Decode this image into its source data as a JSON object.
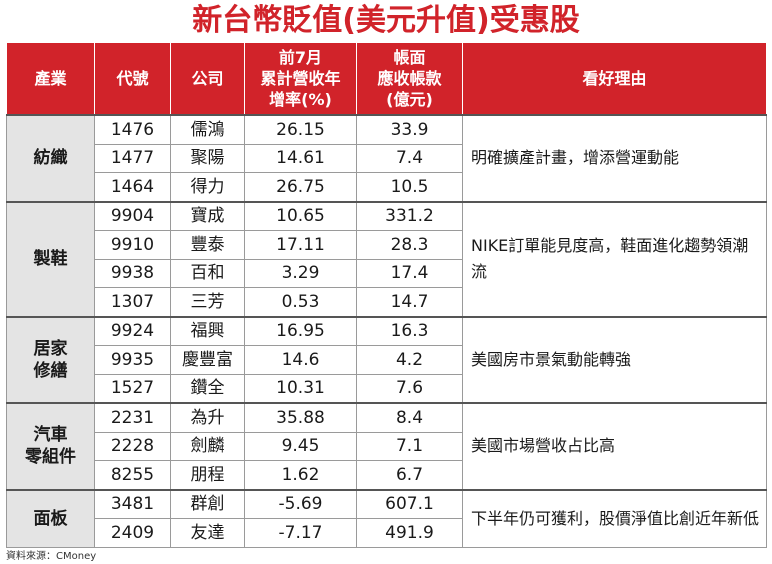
{
  "title": "新台幣貶值(美元升值)受惠股",
  "headers": {
    "industry": "產業",
    "code": "代號",
    "company": "公司",
    "growth": [
      "前7月",
      "累計營收年",
      "增率(%)"
    ],
    "receivable": [
      "帳面",
      "應收帳款",
      "(億元)"
    ],
    "reason": "看好理由"
  },
  "groups": [
    {
      "industry": [
        "紡織"
      ],
      "reason": "明確擴產計畫，增添營運動能",
      "rows": [
        {
          "code": "1476",
          "company": "儒鴻",
          "growth": "26.15",
          "receivable": "33.9"
        },
        {
          "code": "1477",
          "company": "聚陽",
          "growth": "14.61",
          "receivable": "7.4"
        },
        {
          "code": "1464",
          "company": "得力",
          "growth": "26.75",
          "receivable": "10.5"
        }
      ]
    },
    {
      "industry": [
        "製鞋"
      ],
      "reason": "NIKE訂單能見度高，鞋面進化趨勢領潮流",
      "rows": [
        {
          "code": "9904",
          "company": "寶成",
          "growth": "10.65",
          "receivable": "331.2"
        },
        {
          "code": "9910",
          "company": "豐泰",
          "growth": "17.11",
          "receivable": "28.3"
        },
        {
          "code": "9938",
          "company": "百和",
          "growth": "3.29",
          "receivable": "17.4"
        },
        {
          "code": "1307",
          "company": "三芳",
          "growth": "0.53",
          "receivable": "14.7"
        }
      ]
    },
    {
      "industry": [
        "居家",
        "修繕"
      ],
      "reason": "美國房市景氣動能轉強",
      "rows": [
        {
          "code": "9924",
          "company": "福興",
          "growth": "16.95",
          "receivable": "16.3"
        },
        {
          "code": "9935",
          "company": "慶豐富",
          "growth": "14.6",
          "receivable": "4.2"
        },
        {
          "code": "1527",
          "company": "鑽全",
          "growth": "10.31",
          "receivable": "7.6"
        }
      ]
    },
    {
      "industry": [
        "汽車",
        "零組件"
      ],
      "reason": "美國市場營收占比高",
      "rows": [
        {
          "code": "2231",
          "company": "為升",
          "growth": "35.88",
          "receivable": "8.4"
        },
        {
          "code": "2228",
          "company": "劍麟",
          "growth": "9.45",
          "receivable": "7.1"
        },
        {
          "code": "8255",
          "company": "朋程",
          "growth": "1.62",
          "receivable": "6.7"
        }
      ]
    },
    {
      "industry": [
        "面板"
      ],
      "reason": "下半年仍可獲利，股價淨值比創近年新低",
      "rows": [
        {
          "code": "3481",
          "company": "群創",
          "growth": "-5.69",
          "receivable": "607.1"
        },
        {
          "code": "2409",
          "company": "友達",
          "growth": "-7.17",
          "receivable": "491.9"
        }
      ]
    }
  ],
  "source": "資料來源：CMoney"
}
